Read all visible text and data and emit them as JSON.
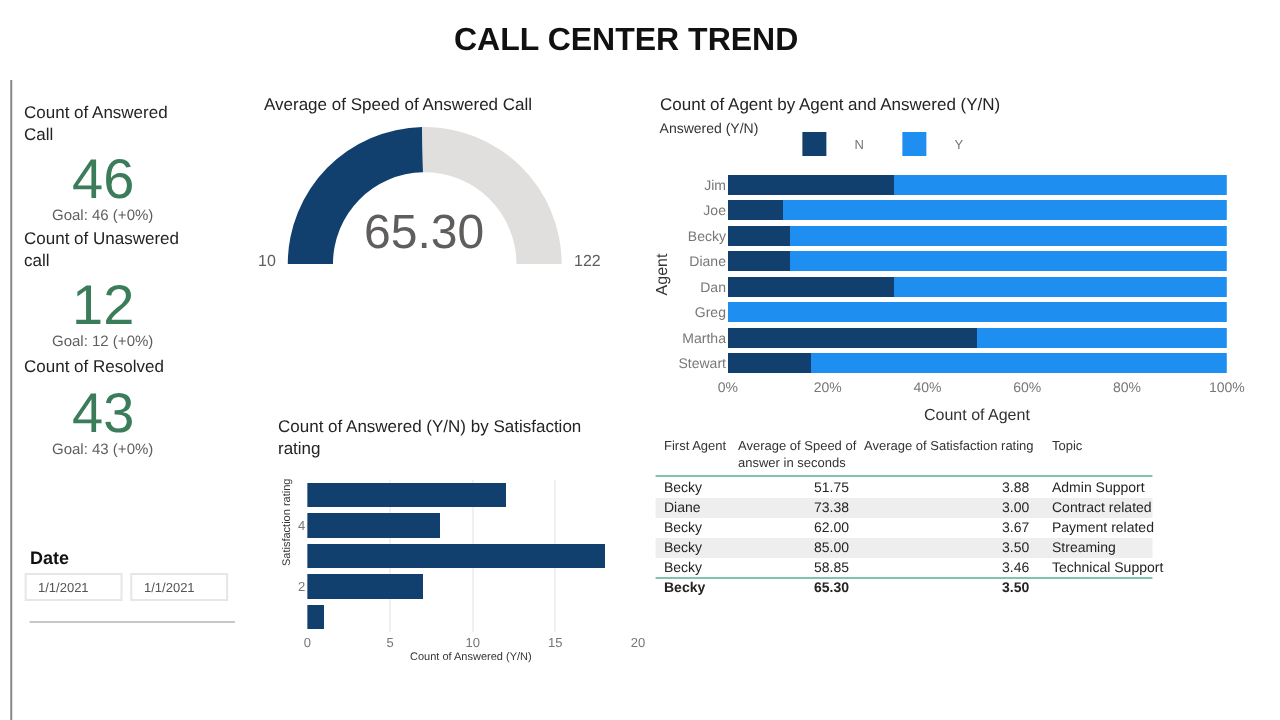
{
  "chart_data": [
    {
      "type": "other",
      "title": "CALL CENTER TREND"
    },
    {
      "type": "other",
      "title": "Count of Answered Call",
      "annotations": [
        "46",
        "Goal: 46 (+0%)"
      ],
      "color": "#3b7d5b"
    },
    {
      "type": "other",
      "title": "Count of Unaswered call",
      "annotations": [
        "12",
        "Goal: 12 (+0%)"
      ],
      "color": "#3b7d5b"
    },
    {
      "type": "other",
      "title": "Count of Resolved",
      "annotations": [
        "43",
        "Goal: 43 (+0%)"
      ],
      "color": "#3b7d5b"
    },
    {
      "type": "donut",
      "title": "Average of Speed of Answered Call",
      "categories": [
        null,
        null
      ],
      "values": [
        49.4,
        50.6
      ],
      "colors": [
        "#12406e",
        "#e1dfdd"
      ],
      "annotations": [
        "65.30",
        "10",
        "122"
      ]
    },
    {
      "type": "bar",
      "orientation": "horizontal",
      "stacked": true,
      "title": "Count of Agent by Agent and Answered (Y/N)",
      "xlabel": "Count of Agent",
      "ylabel": "Agent",
      "legend_title": "Answered (Y/N)",
      "legend": "top left",
      "categories": [
        "Jim",
        "Joe",
        "Becky",
        "Diane",
        "Dan",
        "Greg",
        "Martha",
        "Stewart"
      ],
      "series": [
        {
          "name": "N",
          "color": "#12406e",
          "values": [
            33.3,
            11.1,
            12.5,
            12.5,
            33.3,
            0,
            50,
            16.7
          ]
        },
        {
          "name": "Y",
          "color": "#1f8ef1",
          "values": [
            66.7,
            88.9,
            87.5,
            87.5,
            66.7,
            100,
            50,
            83.3
          ]
        }
      ],
      "xlim": [
        0,
        100
      ],
      "xticks": [
        {
          "value": 0,
          "label": "0%"
        },
        {
          "value": 20,
          "label": "20%"
        },
        {
          "value": 40,
          "label": "40%"
        },
        {
          "value": 60,
          "label": "60%"
        },
        {
          "value": 80,
          "label": "80%"
        },
        {
          "value": 100,
          "label": "100%"
        }
      ]
    },
    {
      "type": "bar",
      "orientation": "horizontal",
      "title": "Count of Answered (Y/N) by Satisfaction rating",
      "xlabel": "Count of Answered (Y/N)",
      "ylabel": "Satisfaction rating",
      "categories": [
        null,
        "4",
        null,
        "2",
        null
      ],
      "values": [
        12,
        8,
        18,
        7,
        1
      ],
      "color": "#12406e",
      "xlim": [
        0,
        20
      ],
      "xticks": [
        0,
        5,
        10,
        15,
        20
      ],
      "grid": "x"
    },
    {
      "type": "other",
      "categories": [
        "First Agent",
        "Average of Speed of answer in seconds",
        "Average of Satisfaction rating",
        "Topic"
      ],
      "cell_labels": [
        [
          "Becky",
          "51.75",
          "3.88",
          "Admin Support"
        ],
        [
          "Diane",
          "73.38",
          "3.00",
          "Contract related"
        ],
        [
          "Becky",
          "62.00",
          "3.67",
          "Payment related"
        ],
        [
          "Becky",
          "85.00",
          "3.50",
          "Streaming"
        ],
        [
          "Becky",
          "58.85",
          "3.46",
          "Technical Support"
        ],
        [
          "Becky",
          "65.30",
          "3.50",
          null
        ]
      ]
    },
    {
      "type": "other",
      "title": "Date",
      "annotations": [
        "1/1/2021",
        "1/1/2021"
      ]
    }
  ]
}
